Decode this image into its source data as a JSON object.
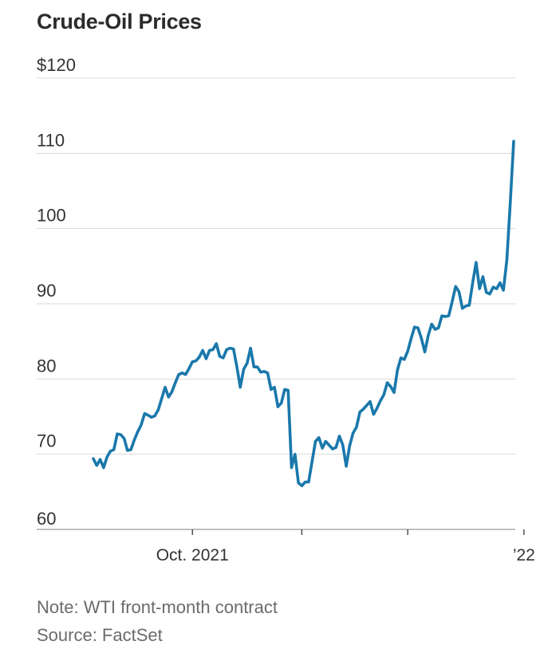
{
  "chart_data": {
    "type": "line",
    "title": "Crude-Oil Prices",
    "note": "Note: WTI front-month contract",
    "source": "Source: FactSet",
    "xlabel": "",
    "ylabel": "",
    "ylim": [
      60,
      120
    ],
    "yticks": [
      {
        "value": 120,
        "label": "$120"
      },
      {
        "value": 110,
        "label": "110"
      },
      {
        "value": 100,
        "label": "100"
      },
      {
        "value": 90,
        "label": "90"
      },
      {
        "value": 80,
        "label": "80"
      },
      {
        "value": 70,
        "label": "70"
      },
      {
        "value": 60,
        "label": "60"
      }
    ],
    "xlim": [
      0,
      190
    ],
    "xticks": [
      {
        "x": 29,
        "label": "Oct. 2021"
      },
      {
        "x": 61,
        "label": ""
      },
      {
        "x": 92,
        "label": ""
      },
      {
        "x": 126,
        "label": "’22"
      },
      {
        "x": 157,
        "label": ""
      },
      {
        "x": 185,
        "label": ""
      }
    ],
    "series": [
      {
        "name": "WTI front-month",
        "color": "#1a78ab",
        "points": [
          [
            0,
            69.4
          ],
          [
            1,
            68.5
          ],
          [
            2,
            69.3
          ],
          [
            3,
            68.2
          ],
          [
            4,
            69.6
          ],
          [
            5,
            70.4
          ],
          [
            6,
            70.6
          ],
          [
            7,
            72.7
          ],
          [
            8,
            72.6
          ],
          [
            9,
            72.1
          ],
          [
            10,
            70.5
          ],
          [
            11,
            70.6
          ],
          [
            12,
            71.9
          ],
          [
            13,
            73.0
          ],
          [
            14,
            73.9
          ],
          [
            15,
            75.4
          ],
          [
            16,
            75.2
          ],
          [
            17,
            74.9
          ],
          [
            18,
            75.1
          ],
          [
            19,
            75.9
          ],
          [
            20,
            77.4
          ],
          [
            21,
            78.9
          ],
          [
            22,
            77.6
          ],
          [
            23,
            78.3
          ],
          [
            24,
            79.5
          ],
          [
            25,
            80.6
          ],
          [
            26,
            80.8
          ],
          [
            27,
            80.6
          ],
          [
            28,
            81.4
          ],
          [
            29,
            82.3
          ],
          [
            30,
            82.4
          ],
          [
            31,
            82.9
          ],
          [
            32,
            83.8
          ],
          [
            33,
            82.7
          ],
          [
            34,
            83.8
          ],
          [
            35,
            83.9
          ],
          [
            36,
            84.7
          ],
          [
            37,
            83.0
          ],
          [
            38,
            82.8
          ],
          [
            39,
            83.9
          ],
          [
            40,
            84.1
          ],
          [
            41,
            84.0
          ],
          [
            42,
            81.6
          ],
          [
            43,
            78.9
          ],
          [
            44,
            81.3
          ],
          [
            45,
            82.1
          ],
          [
            46,
            84.1
          ],
          [
            47,
            81.6
          ],
          [
            48,
            81.6
          ],
          [
            49,
            80.9
          ],
          [
            50,
            81.0
          ],
          [
            51,
            80.8
          ],
          [
            52,
            78.6
          ],
          [
            53,
            78.9
          ],
          [
            54,
            76.3
          ],
          [
            55,
            76.8
          ],
          [
            56,
            78.6
          ],
          [
            57,
            78.5
          ],
          [
            58,
            68.2
          ],
          [
            59,
            70.0
          ],
          [
            60,
            66.2
          ],
          [
            61,
            65.8
          ],
          [
            62,
            66.3
          ],
          [
            63,
            66.3
          ],
          [
            64,
            69.0
          ],
          [
            65,
            71.7
          ],
          [
            66,
            72.2
          ],
          [
            67,
            70.8
          ],
          [
            68,
            71.7
          ],
          [
            69,
            71.2
          ],
          [
            70,
            70.7
          ],
          [
            71,
            70.9
          ],
          [
            72,
            72.4
          ],
          [
            73,
            71.2
          ],
          [
            74,
            68.4
          ],
          [
            75,
            71.1
          ],
          [
            76,
            72.8
          ],
          [
            77,
            73.6
          ],
          [
            78,
            75.6
          ],
          [
            79,
            76.0
          ],
          [
            80,
            76.5
          ],
          [
            81,
            77.0
          ],
          [
            82,
            75.3
          ],
          [
            83,
            76.1
          ],
          [
            84,
            77.1
          ],
          [
            85,
            77.9
          ],
          [
            86,
            79.5
          ],
          [
            87,
            79.0
          ],
          [
            88,
            78.2
          ],
          [
            89,
            81.2
          ],
          [
            90,
            82.8
          ],
          [
            91,
            82.6
          ],
          [
            92,
            83.7
          ],
          [
            93,
            85.4
          ],
          [
            94,
            86.9
          ],
          [
            95,
            86.8
          ],
          [
            96,
            85.4
          ],
          [
            97,
            83.6
          ],
          [
            98,
            85.8
          ],
          [
            99,
            87.3
          ],
          [
            100,
            86.6
          ],
          [
            101,
            86.8
          ],
          [
            102,
            88.4
          ],
          [
            103,
            88.3
          ],
          [
            104,
            88.4
          ],
          [
            105,
            90.3
          ],
          [
            106,
            92.3
          ],
          [
            107,
            91.6
          ],
          [
            108,
            89.4
          ],
          [
            109,
            89.7
          ],
          [
            110,
            89.8
          ],
          [
            111,
            92.8
          ],
          [
            112,
            95.5
          ],
          [
            113,
            92.0
          ],
          [
            114,
            93.6
          ],
          [
            115,
            91.5
          ],
          [
            116,
            91.3
          ],
          [
            117,
            92.2
          ],
          [
            118,
            92.0
          ],
          [
            119,
            92.8
          ],
          [
            120,
            91.8
          ],
          [
            121,
            95.8
          ],
          [
            122,
            103.4
          ],
          [
            123,
            111.6
          ]
        ]
      }
    ]
  }
}
